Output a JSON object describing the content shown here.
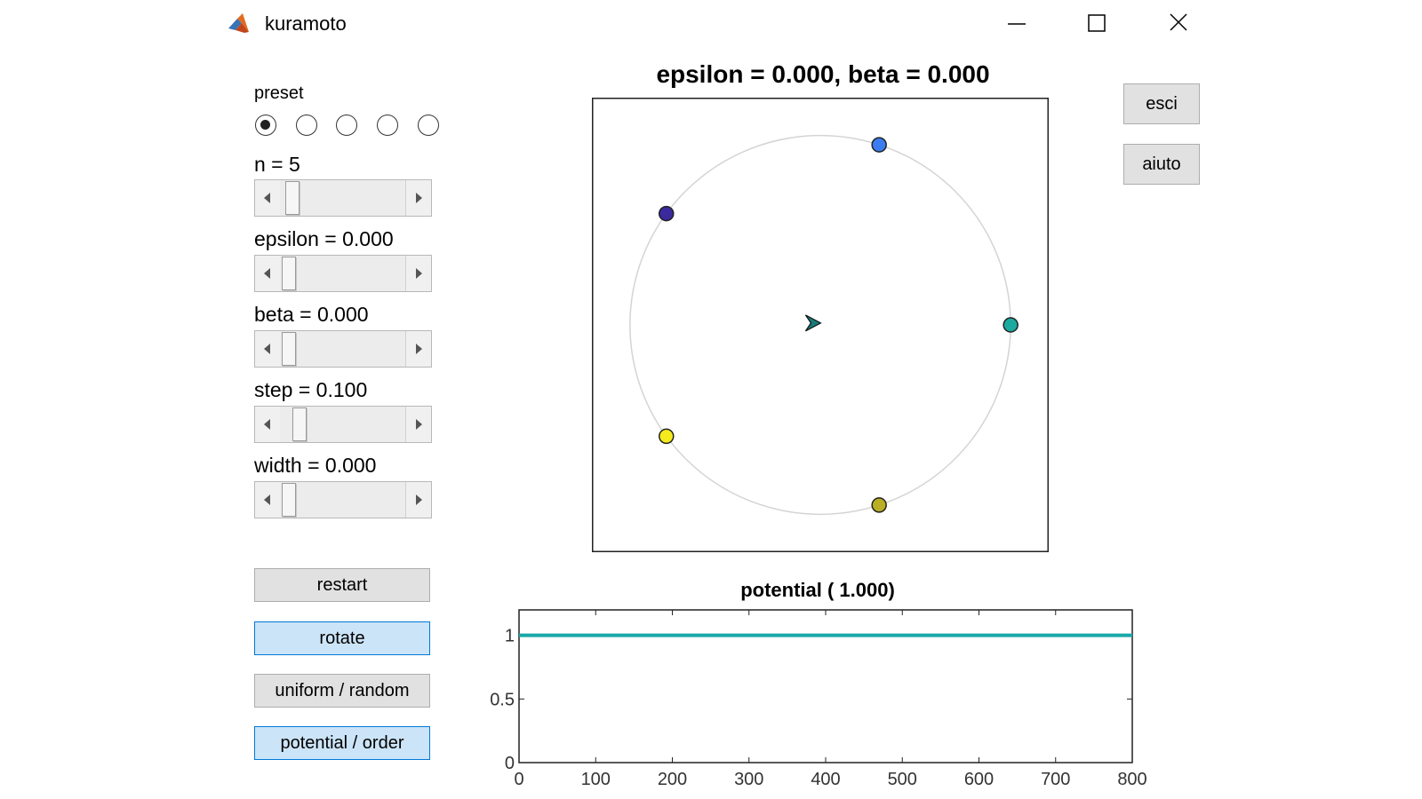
{
  "window": {
    "title": "kuramoto",
    "icon": "matlab-logo-icon",
    "controls": [
      "minimize-icon",
      "maximize-icon",
      "close-icon"
    ]
  },
  "panel": {
    "preset_label": "preset",
    "preset_options": 5,
    "preset_selected": 1,
    "sliders": [
      {
        "label": "n =   5",
        "level": 0.05
      },
      {
        "label": "epsilon = 0.000",
        "level": 0.0
      },
      {
        "label": "beta = 0.000",
        "level": 0.0
      },
      {
        "label": "step = 0.100",
        "level": 0.1
      },
      {
        "label": "width = 0.000",
        "level": 0.0
      }
    ],
    "buttons": {
      "restart": "restart",
      "rotate": "rotate",
      "uniform_random": "uniform / random",
      "potential_order": "potential / order"
    }
  },
  "side_buttons": {
    "esci": "esci",
    "aiuto": "aiuto"
  },
  "colors": {
    "accent": "#0078d7",
    "button_bg": "#e1e1e1",
    "toggled_bg": "#cce4f7",
    "series": "#17a8a8"
  },
  "chart_data": [
    {
      "type": "scatter",
      "title": "epsilon = 0.000, beta = 0.000",
      "xlim": [
        -1.2,
        1.2
      ],
      "ylim": [
        -1.2,
        1.2
      ],
      "circle_radius": 1.0,
      "oscillators": [
        {
          "angle_deg": 72,
          "color": "#3b7df0"
        },
        {
          "angle_deg": 144,
          "color": "#3a2a9e"
        },
        {
          "angle_deg": 0,
          "color": "#1aaaa0"
        },
        {
          "angle_deg": 216,
          "color": "#f5ea1c"
        },
        {
          "angle_deg": 288,
          "color": "#b9ae24"
        }
      ],
      "order_parameter_marker": {
        "x": -0.04,
        "y": 0.01,
        "color": "#177a78"
      }
    },
    {
      "type": "line",
      "title": "potential ( 1.000)",
      "xlim": [
        0,
        800
      ],
      "ylim": [
        0,
        1.2
      ],
      "xticks": [
        0,
        100,
        200,
        300,
        400,
        500,
        600,
        700,
        800
      ],
      "yticks": [
        0,
        0.5,
        1
      ],
      "series": [
        {
          "x": [
            0,
            800
          ],
          "y": [
            1,
            1
          ],
          "color": "#17a8a8"
        }
      ]
    }
  ]
}
